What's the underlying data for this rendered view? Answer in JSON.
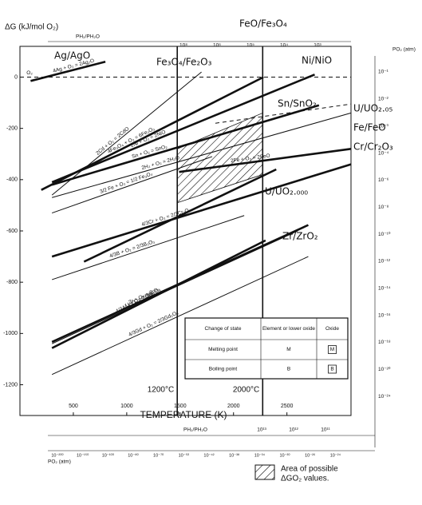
{
  "chart_data": {
    "type": "line",
    "y_label": "ΔG (kJ/mol O₂)",
    "x_label": "TEMPERATURE (K)",
    "xlim": [
      0,
      3100
    ],
    "ylim": [
      -1320,
      120
    ],
    "xticks": [
      500,
      1000,
      1500,
      2000,
      2500
    ],
    "yticks": [
      -1200,
      -1000,
      -800,
      -600,
      -400,
      -200,
      0
    ],
    "color": "#111111",
    "series": [
      {
        "name": "4Ag + O₂ = 2Ag₂O",
        "x": [
          100,
          800
        ],
        "values": [
          -15,
          60
        ],
        "style": "bold"
      },
      {
        "name": "4Fe₃O₄ + O₂ = 6Fe₂O₃",
        "x": [
          200,
          2280
        ],
        "values": [
          -440,
          0
        ],
        "style": "bold"
      },
      {
        "name": "2Cd + O₂ = 2CdO",
        "x": [
          300,
          1700
        ],
        "values": [
          -460,
          20
        ],
        "style": "thin"
      },
      {
        "name": "2Ni + O₂ = 2NiO",
        "x": [
          300,
          2760
        ],
        "values": [
          -410,
          10
        ],
        "style": "bold"
      },
      {
        "name": "3/2 Fe + O₂ = 1/2 Fe₃O₄",
        "x": [
          300,
          1800
        ],
        "values": [
          -530,
          -310
        ],
        "style": "thin"
      },
      {
        "name": "2Fe + O₂ = 2FeO",
        "x": [
          1490,
          3100
        ],
        "values": [
          -370,
          -280
        ],
        "style": "bold"
      },
      {
        "name": "Sn + O₂ = SnO₂",
        "x": [
          300,
          2800
        ],
        "values": [
          -420,
          -110
        ],
        "style": "bold"
      },
      {
        "name": "2H₂ + O₂ = 2H₂O",
        "x": [
          300,
          3100
        ],
        "values": [
          -470,
          -140
        ],
        "style": "thin"
      },
      {
        "x": [
          1830,
          3100
        ],
        "values": [
          -180,
          -105
        ],
        "style": "dashed"
      },
      {
        "name": "4/3Cr + O₂ = 2/3Cr₂O₃",
        "x": [
          300,
          3100
        ],
        "values": [
          -700,
          -340
        ],
        "style": "bold"
      },
      {
        "x": [
          600,
          2400
        ],
        "values": [
          -720,
          -360
        ],
        "style": "bold"
      },
      {
        "name": "4/3B + O₂ = 2/3B₂O₃",
        "x": [
          300,
          2100
        ],
        "values": [
          -790,
          -540
        ],
        "style": "thin"
      },
      {
        "name": "4/3Al + O₂ = 2/3Al₂O₃",
        "x": [
          300,
          2300
        ],
        "values": [
          -1057,
          -637
        ],
        "style": "bold"
      },
      {
        "name": "Zr + O₂ = ZrO₂",
        "x": [
          300,
          2700
        ],
        "values": [
          -1033,
          -577
        ],
        "style": "bold"
      },
      {
        "name": "U + O₂ = UO₂",
        "x": [
          300,
          2600
        ],
        "values": [
          -1040,
          -600
        ],
        "style": "thin"
      },
      {
        "name": "4/3Gd + O₂ = 2/3Gd₂O₃",
        "x": [
          300,
          2700
        ],
        "values": [
          -1160,
          -700
        ],
        "style": "thin"
      },
      {
        "name": "O₂",
        "x": [
          0,
          3100
        ],
        "values": [
          0,
          0
        ],
        "style": "dashed"
      }
    ],
    "region": {
      "lines": [
        "Area of possible",
        "ΔGO₂ values."
      ],
      "x": [
        1473,
        2273,
        2273,
        1473
      ],
      "values": [
        -280,
        -140,
        -380,
        -490
      ]
    },
    "reference_lines": [
      {
        "x": 1473,
        "label": "1200°C"
      },
      {
        "x": 2273,
        "label": "2000°C"
      }
    ],
    "couples": [
      "Ag/AgO",
      "FeO/Fe₃O₄",
      "Fe₃O₄/Fe₂O₃",
      "Ni/NiO",
      "Sn/SnO₂",
      "U/UO₂.₀₅",
      "Fe/FeO",
      "Cr/Cr₂O₃",
      "U/UO₂.₀₀₀",
      "Zr/ZrO₂"
    ],
    "top_scale": {
      "label": "PH₂/PH₂O",
      "ticks": [
        "10⁸",
        "10⁶",
        "10⁵",
        "10⁴",
        "10³"
      ]
    },
    "right_scale": {
      "label": "PO₂ (atm)",
      "ticks": [
        "10⁻¹",
        "10⁻²",
        "10⁻³",
        "10⁻⁴",
        "10⁻⁶",
        "10⁻⁸",
        "10⁻¹⁰",
        "10⁻¹²",
        "10⁻¹⁴",
        "10⁻¹⁶",
        "10⁻¹⁸",
        "10⁻²⁰",
        "10⁻²⁴"
      ]
    },
    "bottom_scale_h2": {
      "label": "PH₂/PH₂O",
      "ticks": [
        "10¹³",
        "10¹²",
        "10¹¹"
      ]
    },
    "bottom_scale_o2": {
      "label": "PO₂ (atm)",
      "ticks": [
        "10⁻²⁰⁰",
        "10⁻¹⁵⁰",
        "10⁻¹⁰⁰",
        "10⁻⁸⁰",
        "10⁻⁷⁰",
        "10⁻⁵⁰",
        "10⁻⁴²",
        "10⁻³⁸",
        "10⁻³⁴",
        "10⁻³⁰",
        "10⁻²⁶",
        "10⁻²⁴"
      ]
    },
    "legend_table": {
      "headers": [
        "Change of state",
        "Element or lower oxide",
        "Oxide"
      ],
      "rows": [
        [
          "Melting point",
          "M",
          "M"
        ],
        [
          "Boiling point",
          "B",
          "B"
        ]
      ]
    }
  }
}
